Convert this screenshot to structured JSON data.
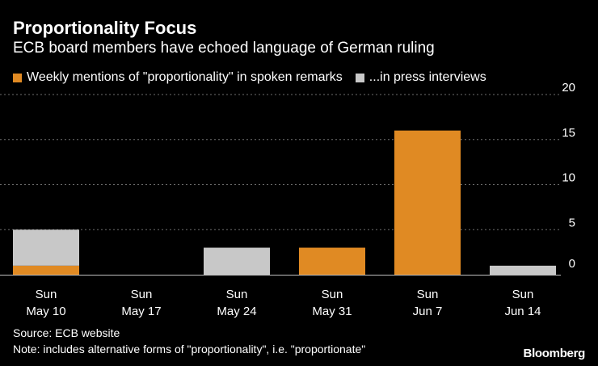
{
  "title": "Proportionality Focus",
  "subtitle": "ECB board members have echoed language of German ruling",
  "source": "Source: ECB website",
  "note": "Note: includes alternative forms of \"proportionality\", i.e. \"proportionate\"",
  "brand": "Bloomberg",
  "colors": {
    "spoken": "#e08a23",
    "press": "#c8c8c8",
    "grid": "#6e6e6e",
    "axis": "#bfbfbf",
    "text": "#ffffff"
  },
  "chart_data": {
    "type": "bar",
    "stacked": true,
    "title": "Proportionality Focus",
    "subtitle": "ECB board members have echoed language of German ruling",
    "categories": [
      [
        "Sun",
        "May 10"
      ],
      [
        "Sun",
        "May 17"
      ],
      [
        "Sun",
        "May 24"
      ],
      [
        "Sun",
        "May 31"
      ],
      [
        "Sun",
        "Jun 7"
      ],
      [
        "Sun",
        "Jun 14"
      ]
    ],
    "series": [
      {
        "name": "Weekly mentions of \"proportionality\" in spoken remarks",
        "values": [
          1,
          0,
          0,
          3,
          16,
          0
        ]
      },
      {
        "name": "...in press interviews",
        "values": [
          4,
          0,
          3,
          0,
          0,
          1
        ]
      }
    ],
    "yticks": [
      0,
      5,
      10,
      15,
      20
    ],
    "ylim": [
      0,
      20
    ],
    "y_axis_side": "right",
    "grid": true,
    "legend": "top-left"
  }
}
